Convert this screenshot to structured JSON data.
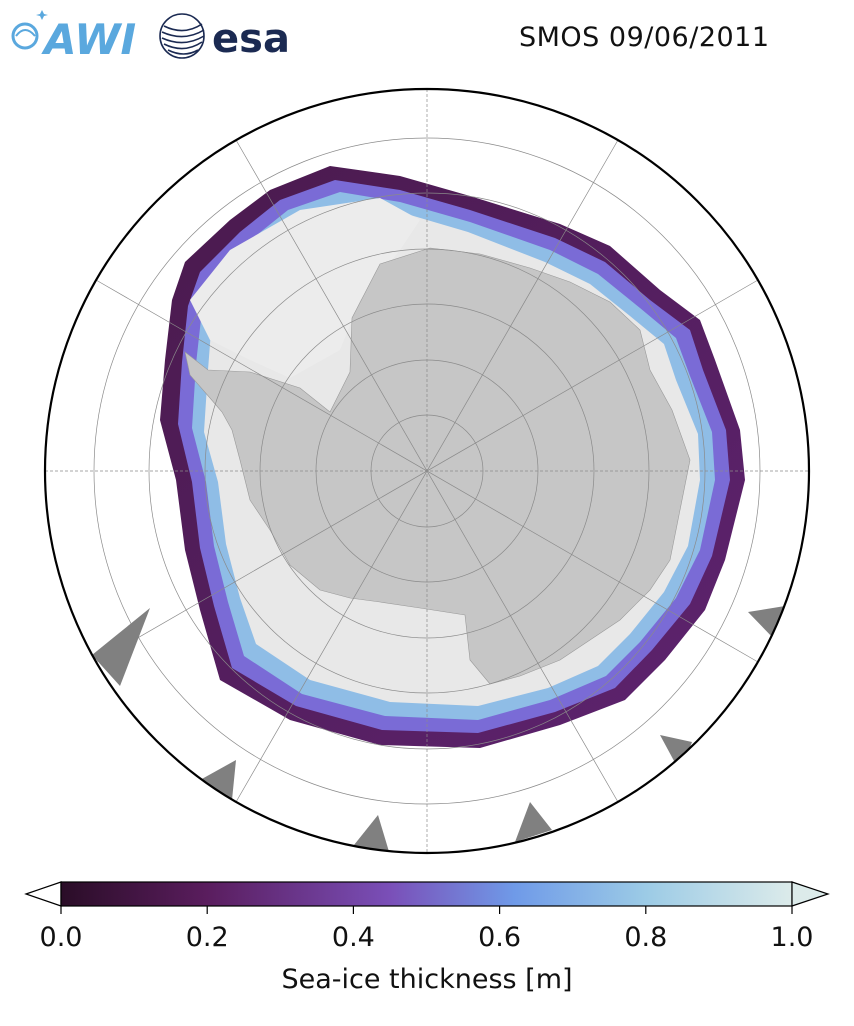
{
  "header": {
    "title": "SMOS 09/06/2011",
    "logos": [
      {
        "name": "AWI",
        "text": "AWI",
        "color": "#5aa8de"
      },
      {
        "name": "ESA",
        "text": "esa",
        "color": "#1b2a52"
      }
    ]
  },
  "map": {
    "projection": "south-polar-stereographic",
    "land_color": "#c6c6c6",
    "missing_color": "#808080",
    "ocean_color": "#ffffff",
    "thick_ice_color": "#e8e8e8",
    "graticule": "on"
  },
  "colorbar": {
    "label": "Sea-ice thickness [m]",
    "min": 0.0,
    "max": 1.0,
    "ticks": [
      "0.0",
      "0.2",
      "0.4",
      "0.6",
      "0.8",
      "1.0"
    ],
    "extend": "both",
    "colors": [
      "#2a0d27",
      "#5a1d5e",
      "#7a4fb8",
      "#6f9ae8",
      "#9ccbe6",
      "#dcebea"
    ]
  }
}
